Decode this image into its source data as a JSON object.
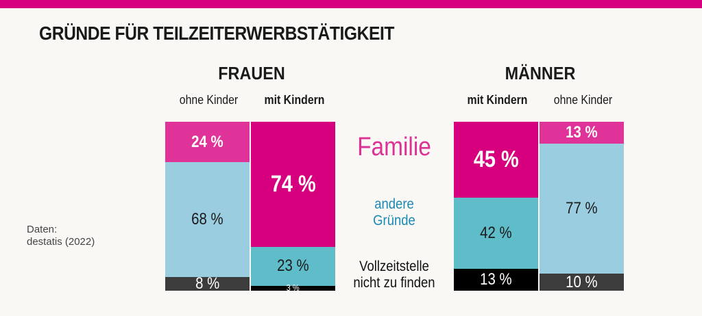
{
  "title": "GRÜNDE FÜR TEILZEITERWERBSTÄTIGKEIT",
  "source": {
    "line1": "Daten:",
    "line2": "destatis (2022)"
  },
  "chart_data": {
    "type": "bar",
    "stacked": true,
    "title": "GRÜNDE FÜR TEILZEITERWERBSTÄTIGKEIT",
    "ylim": [
      0,
      100
    ],
    "groups": [
      "FRAUEN",
      "MÄNNER"
    ],
    "categories": [
      "ohne Kinder",
      "mit Kindern",
      "mit Kindern",
      "ohne Kinder"
    ],
    "category_group": [
      "FRAUEN",
      "FRAUEN",
      "MÄNNER",
      "MÄNNER"
    ],
    "series": [
      {
        "name": "Familie",
        "values": [
          24,
          74,
          45,
          13
        ],
        "colors": [
          "#e0339a",
          "#d6007e",
          "#d6007e",
          "#e0339a"
        ]
      },
      {
        "name": "andere Gründe",
        "values": [
          68,
          23,
          42,
          77
        ],
        "colors": [
          "#9bcde0",
          "#5fbcc9",
          "#5fbcc9",
          "#9bcde0"
        ]
      },
      {
        "name": "Vollzeitstelle nicht zu finden",
        "values": [
          8,
          3,
          13,
          10
        ],
        "colors": [
          "#3c3c3c",
          "#000000",
          "#000000",
          "#3c3c3c"
        ]
      }
    ],
    "data_labels": [
      [
        "24 %",
        "68 %",
        "8 %"
      ],
      [
        "74 %",
        "23 %",
        "3 %"
      ],
      [
        "45 %",
        "42 %",
        "13 %"
      ],
      [
        "13 %",
        "77 %",
        "10 %"
      ]
    ],
    "legend": {
      "familie": "Familie",
      "andere_line1": "andere",
      "andere_line2": "Gründe",
      "vollzeit_line1": "Vollzeitstelle",
      "vollzeit_line2": "nicht zu finden",
      "colors": {
        "familie": "#dc3296",
        "andere": "#1a8ab4",
        "vollzeit": "#111111"
      },
      "placement": "center"
    }
  }
}
